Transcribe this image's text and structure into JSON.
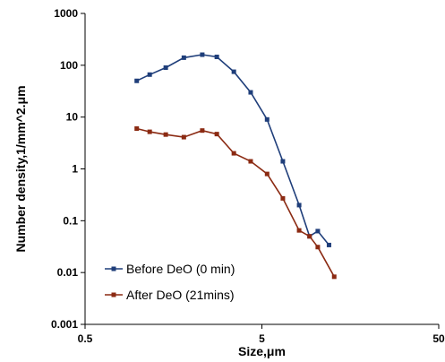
{
  "chart_data": {
    "type": "line",
    "xlabel": "Size,μm",
    "ylabel": "Number density,1/mm^2.μm",
    "x_scale": "log",
    "y_scale": "log",
    "xlim": [
      0.5,
      50
    ],
    "ylim": [
      0.001,
      1000
    ],
    "x_ticks": [
      0.5,
      5,
      50
    ],
    "x_tick_labels": [
      "0.5",
      "5",
      "50"
    ],
    "y_ticks": [
      0.001,
      0.01,
      0.1,
      1,
      10,
      100,
      1000
    ],
    "y_tick_labels": [
      "0.001",
      "0.01",
      "0.1",
      "1",
      "10",
      "100",
      "1000"
    ],
    "grid": false,
    "legend_position": "bottom-left",
    "series": [
      {
        "name": "Before DeO (0 min)",
        "color": "#1f3e7a",
        "marker": "square",
        "x": [
          0.98,
          1.16,
          1.43,
          1.81,
          2.3,
          2.78,
          3.47,
          4.32,
          5.35,
          6.57,
          8.12,
          9.3,
          10.35,
          11.98
        ],
        "y": [
          50,
          66,
          90,
          140,
          160,
          145,
          75,
          30,
          9,
          1.4,
          0.2,
          0.05,
          0.063,
          0.034
        ]
      },
      {
        "name": "After DeO (21mins)",
        "color": "#8b2a12",
        "marker": "square",
        "x": [
          0.98,
          1.16,
          1.43,
          1.81,
          2.3,
          2.78,
          3.47,
          4.32,
          5.35,
          6.57,
          8.12,
          9.3,
          10.35,
          12.82
        ],
        "y": [
          6,
          5.2,
          4.6,
          4.1,
          5.5,
          4.7,
          2,
          1.4,
          0.8,
          0.27,
          0.065,
          0.05,
          0.031,
          0.0083
        ]
      }
    ]
  }
}
